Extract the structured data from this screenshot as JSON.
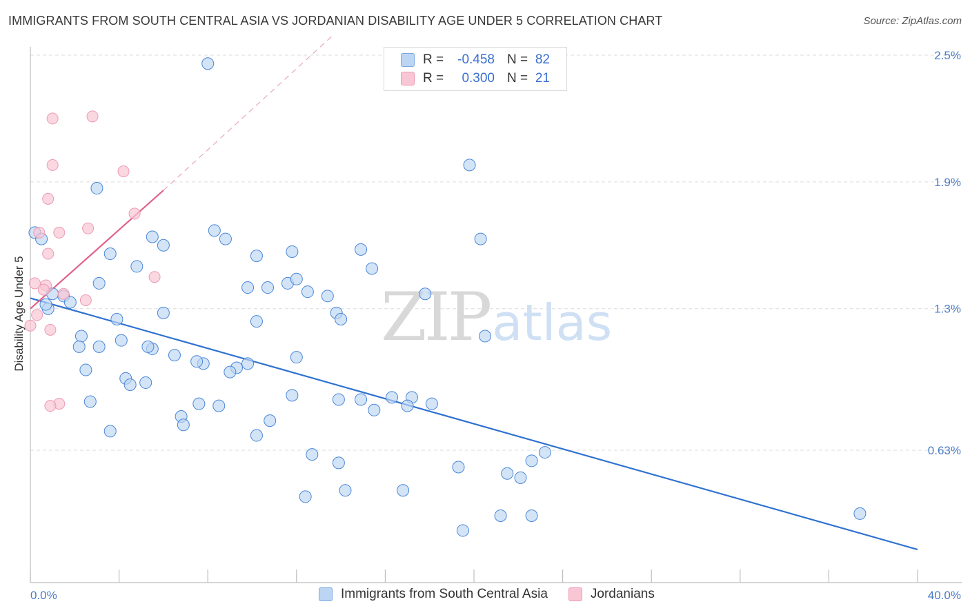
{
  "header": {
    "title": "IMMIGRANTS FROM SOUTH CENTRAL ASIA VS JORDANIAN DISABILITY AGE UNDER 5 CORRELATION CHART",
    "source": "Source: ZipAtlas.com"
  },
  "watermark": {
    "zip": "ZIP",
    "atlas": "atlas"
  },
  "legend": {
    "rows": [
      {
        "r_label": "R =",
        "r_value": "-0.458",
        "n_label": "N =",
        "n_value": "82",
        "color": "#a8c8f0"
      },
      {
        "r_label": "R =",
        "r_value": "0.300",
        "n_label": "N =",
        "n_value": "21",
        "color": "#f5b8c8"
      }
    ]
  },
  "bottom_legend": {
    "items": [
      {
        "label": "Immigrants from South Central Asia",
        "color": "#a8c8f0"
      },
      {
        "label": "Jordanians",
        "color": "#f5b8c8"
      }
    ]
  },
  "chart_data": {
    "type": "scatter",
    "title": "IMMIGRANTS FROM SOUTH CENTRAL ASIA VS JORDANIAN DISABILITY AGE UNDER 5 CORRELATION CHART",
    "ylabel": "Disability Age Under 5",
    "xlabel": "",
    "xlim": [
      0,
      40
    ],
    "ylim": [
      0,
      2.6
    ],
    "x_tick_labels": [
      "0.0%",
      "40.0%"
    ],
    "y_ticks": [
      0.63,
      1.3,
      1.9,
      2.5
    ],
    "y_tick_labels": [
      "0.63%",
      "1.3%",
      "1.9%",
      "2.5%"
    ],
    "grid": true,
    "legend_position": "top-center",
    "colors": {
      "series1": "#4a86d8",
      "series1_fill": "#bcd5f3",
      "series2": "#e06890",
      "series2_fill": "#f8c6d4",
      "trend1": "#2f72d0",
      "trend2": "#e0628a"
    },
    "series": [
      {
        "name": "Immigrants from South Central Asia",
        "points": [
          [
            8.0,
            2.46
          ],
          [
            19.8,
            1.98
          ],
          [
            3.0,
            1.87
          ],
          [
            5.5,
            1.64
          ],
          [
            6.0,
            1.6
          ],
          [
            8.3,
            1.67
          ],
          [
            8.8,
            1.63
          ],
          [
            0.2,
            1.66
          ],
          [
            0.5,
            1.63
          ],
          [
            3.6,
            1.56
          ],
          [
            4.8,
            1.5
          ],
          [
            11.8,
            1.57
          ],
          [
            10.2,
            1.55
          ],
          [
            14.9,
            1.58
          ],
          [
            20.3,
            1.63
          ],
          [
            15.4,
            1.49
          ],
          [
            9.8,
            1.4
          ],
          [
            10.7,
            1.4
          ],
          [
            11.6,
            1.42
          ],
          [
            12.0,
            1.44
          ],
          [
            3.1,
            1.42
          ],
          [
            12.5,
            1.38
          ],
          [
            13.4,
            1.36
          ],
          [
            17.8,
            1.37
          ],
          [
            1.5,
            1.36
          ],
          [
            1.8,
            1.33
          ],
          [
            0.8,
            1.3
          ],
          [
            6.0,
            1.28
          ],
          [
            3.9,
            1.25
          ],
          [
            10.2,
            1.24
          ],
          [
            13.8,
            1.28
          ],
          [
            14.0,
            1.25
          ],
          [
            2.3,
            1.17
          ],
          [
            4.1,
            1.15
          ],
          [
            20.5,
            1.17
          ],
          [
            2.2,
            1.12
          ],
          [
            5.5,
            1.11
          ],
          [
            5.3,
            1.12
          ],
          [
            3.1,
            1.12
          ],
          [
            6.5,
            1.08
          ],
          [
            12.0,
            1.07
          ],
          [
            7.8,
            1.04
          ],
          [
            7.5,
            1.05
          ],
          [
            9.8,
            1.04
          ],
          [
            9.3,
            1.02
          ],
          [
            9.0,
            1.0
          ],
          [
            2.5,
            1.01
          ],
          [
            4.3,
            0.97
          ],
          [
            4.5,
            0.94
          ],
          [
            5.2,
            0.95
          ],
          [
            11.8,
            0.89
          ],
          [
            13.9,
            0.87
          ],
          [
            14.9,
            0.87
          ],
          [
            16.3,
            0.88
          ],
          [
            17.2,
            0.88
          ],
          [
            18.1,
            0.85
          ],
          [
            17.0,
            0.84
          ],
          [
            15.5,
            0.82
          ],
          [
            2.7,
            0.86
          ],
          [
            7.6,
            0.85
          ],
          [
            8.5,
            0.84
          ],
          [
            6.8,
            0.79
          ],
          [
            10.8,
            0.77
          ],
          [
            6.9,
            0.75
          ],
          [
            3.6,
            0.72
          ],
          [
            10.2,
            0.7
          ],
          [
            12.7,
            0.61
          ],
          [
            13.9,
            0.57
          ],
          [
            19.3,
            0.55
          ],
          [
            22.6,
            0.58
          ],
          [
            23.2,
            0.62
          ],
          [
            21.5,
            0.52
          ],
          [
            22.1,
            0.5
          ],
          [
            14.2,
            0.44
          ],
          [
            16.8,
            0.44
          ],
          [
            12.4,
            0.41
          ],
          [
            21.2,
            0.32
          ],
          [
            22.6,
            0.32
          ],
          [
            19.5,
            0.25
          ],
          [
            37.4,
            0.33
          ],
          [
            1.0,
            1.37
          ],
          [
            0.7,
            1.32
          ]
        ]
      },
      {
        "name": "Jordanians",
        "points": [
          [
            1.0,
            2.2
          ],
          [
            2.8,
            2.21
          ],
          [
            1.0,
            1.98
          ],
          [
            4.2,
            1.95
          ],
          [
            0.8,
            1.82
          ],
          [
            4.7,
            1.75
          ],
          [
            2.6,
            1.68
          ],
          [
            1.3,
            1.66
          ],
          [
            0.4,
            1.66
          ],
          [
            0.8,
            1.56
          ],
          [
            5.6,
            1.45
          ],
          [
            0.2,
            1.42
          ],
          [
            0.7,
            1.41
          ],
          [
            0.6,
            1.39
          ],
          [
            1.5,
            1.37
          ],
          [
            2.5,
            1.34
          ],
          [
            0.3,
            1.27
          ],
          [
            0.0,
            1.22
          ],
          [
            0.9,
            1.2
          ],
          [
            1.3,
            0.85
          ],
          [
            0.9,
            0.84
          ]
        ]
      }
    ],
    "trend_lines": [
      {
        "series": "Immigrants from South Central Asia",
        "x": [
          0,
          40
        ],
        "y": [
          1.35,
          0.16
        ]
      },
      {
        "series": "Jordanians",
        "x": [
          0,
          6
        ],
        "y": [
          1.3,
          1.86
        ],
        "dashed_extension_to": [
          13.6,
          2.59
        ]
      }
    ]
  }
}
